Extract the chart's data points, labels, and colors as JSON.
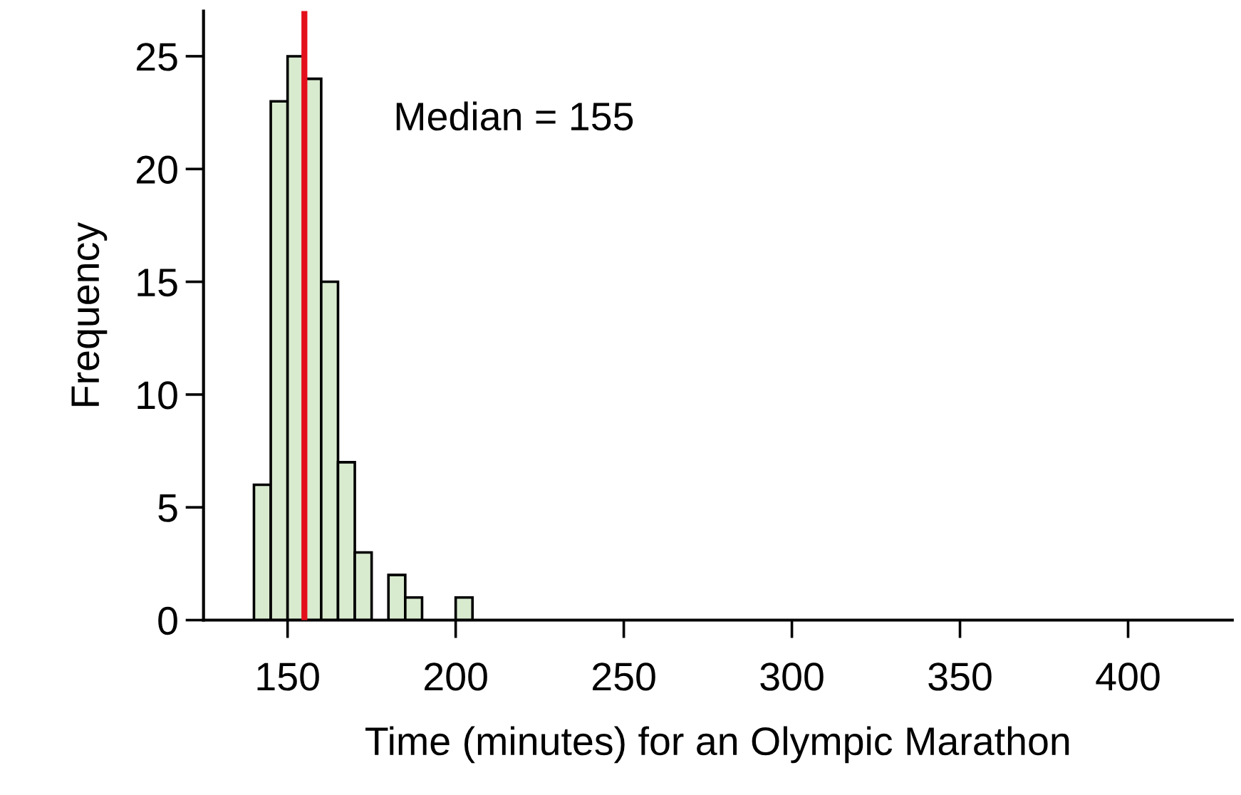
{
  "chart_data": {
    "type": "histogram",
    "xlabel": "Time (minutes) for an Olympic Marathon",
    "ylabel": "Frequency",
    "bins": [
      140,
      145,
      150,
      155,
      160,
      165,
      170,
      175,
      180,
      185,
      190,
      195,
      200,
      205
    ],
    "values": [
      6,
      23,
      25,
      24,
      15,
      7,
      3,
      0,
      2,
      1,
      0,
      0,
      1
    ],
    "color": "#d9ebcf",
    "xlim": [
      125,
      431
    ],
    "xticks": [
      150,
      200,
      250,
      300,
      350,
      400
    ],
    "ylim": [
      0,
      27
    ],
    "yticks": [
      0,
      5,
      10,
      15,
      20,
      25
    ],
    "ref_lines": [
      {
        "axis": "x",
        "value": 155,
        "label": "Median = 155",
        "color": "#e3101c"
      }
    ],
    "grid": false,
    "legend": false
  }
}
